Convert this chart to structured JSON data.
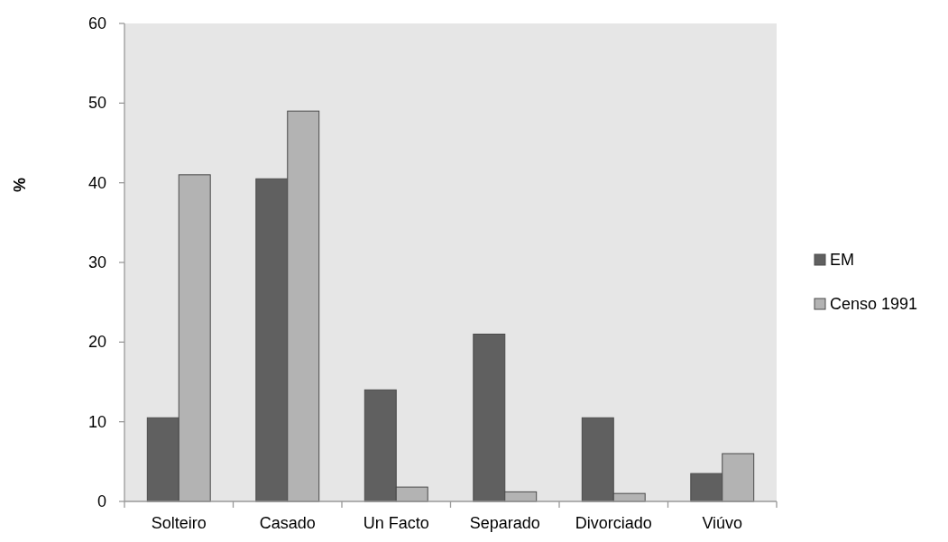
{
  "chart_data": {
    "type": "bar",
    "ylabel": "%",
    "categories": [
      "Solteiro",
      "Casado",
      "Un Facto",
      "Separado",
      "Divorciado",
      "Viúvo"
    ],
    "series": [
      {
        "name": "EM",
        "color": "#606060",
        "values": [
          10.5,
          40.5,
          14,
          21,
          10.5,
          3.5
        ]
      },
      {
        "name": "Censo 1991",
        "color": "#b3b3b3",
        "values": [
          41,
          49,
          1.8,
          1.2,
          1,
          6
        ]
      }
    ],
    "ylim": [
      0,
      60
    ],
    "yticks": [
      0,
      10,
      20,
      30,
      40,
      50,
      60
    ],
    "legend": "right"
  }
}
